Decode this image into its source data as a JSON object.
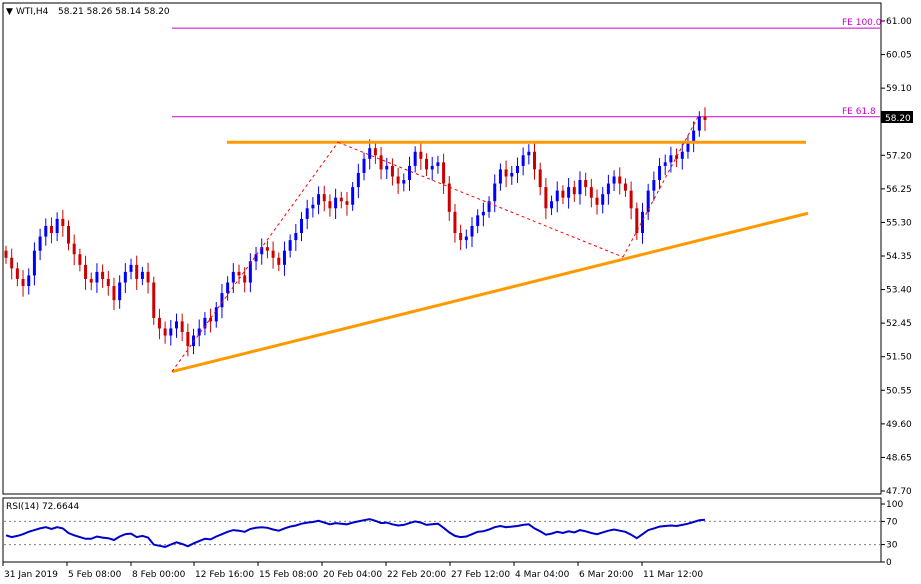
{
  "header": {
    "symbol": "WTI,H4",
    "ohlc": "58.21 58.26 58.14 58.20"
  },
  "price_tag": "58.20",
  "colors": {
    "bull": "#0000ff",
    "bear": "#cc0000",
    "fe": "#cc00cc",
    "trendline": "#ff9900",
    "zigzag": "#ff0000",
    "rsi": "#0000cc",
    "price_tag_bg": "#000000"
  },
  "rsi_header": "RSI(14) 72.6644",
  "chart_data": [
    {
      "type": "candlestick",
      "title": "",
      "y_ticks": [
        "61.00",
        "60.05",
        "59.10",
        "58.20",
        "57.20",
        "56.25",
        "55.30",
        "54.35",
        "53.40",
        "52.45",
        "51.50",
        "50.55",
        "49.60",
        "48.65",
        "47.70"
      ],
      "ylim": [
        47.7,
        61.5
      ],
      "x_ticks": [
        "31 Jan 2019",
        "5 Feb 08:00",
        "8 Feb 00:00",
        "12 Feb 16:00",
        "15 Feb 08:00",
        "20 Feb 04:00",
        "22 Feb 20:00",
        "27 Feb 12:00",
        "4 Mar 04:00",
        "6 Mar 20:00",
        "11 Mar 12:00"
      ],
      "bar_count": 124,
      "closes": [
        54.3,
        54.0,
        53.7,
        53.5,
        53.8,
        54.5,
        54.9,
        55.2,
        55.0,
        55.4,
        55.2,
        54.7,
        54.4,
        54.1,
        53.7,
        53.6,
        53.9,
        53.7,
        53.5,
        53.1,
        53.6,
        53.9,
        54.1,
        53.7,
        53.9,
        53.6,
        52.6,
        52.3,
        52.1,
        52.3,
        52.5,
        52.2,
        51.8,
        52.1,
        52.3,
        52.6,
        52.5,
        52.9,
        53.3,
        53.6,
        53.9,
        53.8,
        53.6,
        54.2,
        54.4,
        54.6,
        54.5,
        54.3,
        54.1,
        54.5,
        54.8,
        55.0,
        55.4,
        55.7,
        55.8,
        56.1,
        55.9,
        55.7,
        56.0,
        55.9,
        55.8,
        56.3,
        56.7,
        57.1,
        57.4,
        57.2,
        56.8,
        56.9,
        56.6,
        56.4,
        56.5,
        56.9,
        57.3,
        57.1,
        56.8,
        56.9,
        57.0,
        56.4,
        55.6,
        55.0,
        54.8,
        54.9,
        55.2,
        55.5,
        55.6,
        55.9,
        56.4,
        56.8,
        56.6,
        56.7,
        56.9,
        57.2,
        57.3,
        56.8,
        56.3,
        55.7,
        55.9,
        56.2,
        56.0,
        56.3,
        56.1,
        56.5,
        56.3,
        56.0,
        55.8,
        56.1,
        56.4,
        56.6,
        56.4,
        56.2,
        55.7,
        55.0,
        55.6,
        56.2,
        56.5,
        56.9,
        57.0,
        57.2,
        57.1,
        57.3,
        57.6,
        57.9,
        58.3,
        58.2
      ],
      "annotations": [
        "FE 100.0",
        "FE 61.8"
      ],
      "series": []
    },
    {
      "type": "line",
      "title": "",
      "y_ticks": [
        "100",
        "70",
        "30",
        "0"
      ],
      "ylim": [
        0,
        100
      ],
      "series": [
        {
          "name": "RSI(14)",
          "values": [
            46,
            43,
            45,
            48,
            52,
            55,
            58,
            60,
            57,
            60,
            58,
            50,
            46,
            43,
            40,
            40,
            44,
            42,
            41,
            38,
            44,
            48,
            49,
            43,
            45,
            42,
            30,
            28,
            26,
            30,
            34,
            31,
            27,
            32,
            36,
            40,
            39,
            44,
            48,
            52,
            55,
            54,
            52,
            57,
            59,
            60,
            59,
            56,
            54,
            58,
            61,
            63,
            66,
            68,
            69,
            71,
            68,
            65,
            67,
            66,
            65,
            68,
            70,
            72,
            74,
            71,
            67,
            68,
            65,
            63,
            64,
            67,
            70,
            68,
            64,
            65,
            66,
            59,
            51,
            45,
            43,
            44,
            48,
            52,
            53,
            56,
            60,
            62,
            60,
            61,
            62,
            64,
            65,
            58,
            53,
            47,
            49,
            52,
            50,
            53,
            51,
            55,
            53,
            50,
            48,
            51,
            54,
            56,
            54,
            52,
            47,
            41,
            48,
            55,
            58,
            61,
            62,
            63,
            62,
            64,
            66,
            69,
            72,
            73
          ]
        }
      ]
    }
  ]
}
